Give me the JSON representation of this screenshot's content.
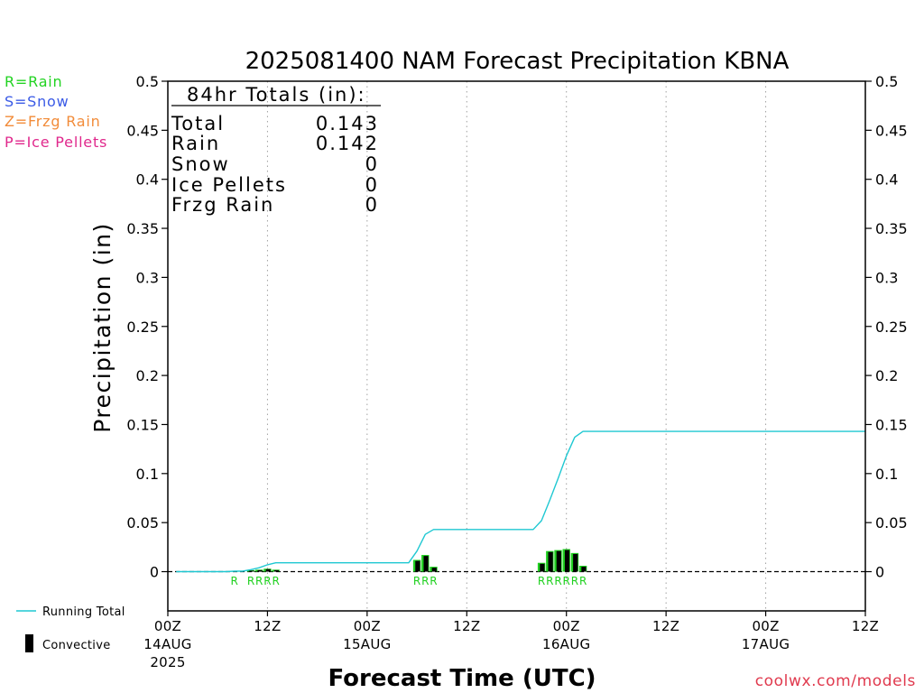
{
  "type_legend": [
    {
      "label": "R=Rain",
      "color": "#22d322"
    },
    {
      "label": "S=Snow",
      "color": "#3b5be6"
    },
    {
      "label": "Z=Frzg Rain",
      "color": "#f28c3a"
    },
    {
      "label": "P=Ice Pellets",
      "color": "#e0288c"
    }
  ],
  "totals": {
    "heading": "84hr Totals (in):",
    "rows": [
      {
        "label": "Total",
        "value": "0.143"
      },
      {
        "label": "Rain",
        "value": "0.142"
      },
      {
        "label": "Snow",
        "value": "0"
      },
      {
        "label": "Ice Pellets",
        "value": "0"
      },
      {
        "label": "Frzg Rain",
        "value": "0"
      }
    ]
  },
  "credit": {
    "text": "coolwx.com/models",
    "color": "#e03a4e"
  },
  "colors": {
    "grid": "#a0a0a0",
    "axes": "#000000"
  },
  "chart_data": {
    "type": "bar",
    "title": "2025081400 NAM Forecast Precipitation KBNA",
    "xlabel": "Forecast Time (UTC)",
    "ylabel": "Precipitation (in)",
    "xlim": [
      "2025-08-14T00:00Z",
      "2025-08-17T12:00Z"
    ],
    "ylim": [
      -0.04,
      0.5
    ],
    "grid": {
      "x": true,
      "y": false
    },
    "zero_line": true,
    "yticks": [
      "0",
      "0.05",
      "0.1",
      "0.15",
      "0.2",
      "0.25",
      "0.3",
      "0.35",
      "0.4",
      "0.45",
      "0.5"
    ],
    "xticks": [
      {
        "time": "2025-08-14T00:00Z",
        "label": [
          "00Z",
          "14AUG",
          "2025"
        ]
      },
      {
        "time": "2025-08-14T12:00Z",
        "label": [
          "12Z"
        ]
      },
      {
        "time": "2025-08-15T00:00Z",
        "label": [
          "00Z",
          "15AUG"
        ]
      },
      {
        "time": "2025-08-15T12:00Z",
        "label": [
          "12Z"
        ]
      },
      {
        "time": "2025-08-16T00:00Z",
        "label": [
          "00Z",
          "16AUG"
        ]
      },
      {
        "time": "2025-08-16T12:00Z",
        "label": [
          "12Z"
        ]
      },
      {
        "time": "2025-08-17T00:00Z",
        "label": [
          "00Z",
          "17AUG"
        ]
      },
      {
        "time": "2025-08-17T12:00Z",
        "label": [
          "12Z"
        ]
      }
    ],
    "series": [
      {
        "name": "Running Total",
        "type": "line",
        "color": "#1fc8d2",
        "x": [
          "2025-08-14T01:00Z",
          "2025-08-14T07:00Z",
          "2025-08-14T08:00Z",
          "2025-08-14T09:00Z",
          "2025-08-14T10:00Z",
          "2025-08-14T11:00Z",
          "2025-08-14T12:00Z",
          "2025-08-14T13:00Z",
          "2025-08-15T05:00Z",
          "2025-08-15T06:00Z",
          "2025-08-15T07:00Z",
          "2025-08-15T08:00Z",
          "2025-08-15T20:00Z",
          "2025-08-15T21:00Z",
          "2025-08-15T22:00Z",
          "2025-08-15T23:00Z",
          "2025-08-16T00:00Z",
          "2025-08-16T01:00Z",
          "2025-08-16T02:00Z",
          "2025-08-17T12:00Z"
        ],
        "y": [
          0,
          0,
          0.0005,
          0.0005,
          0.002,
          0.004,
          0.007,
          0.009,
          0.009,
          0.021,
          0.038,
          0.043,
          0.043,
          0.052,
          0.073,
          0.095,
          0.118,
          0.137,
          0.143,
          0.143
        ]
      },
      {
        "type": "bar",
        "color": "#1fd01f",
        "x": [
          "2025-08-14T08:00Z",
          "2025-08-14T10:00Z",
          "2025-08-14T11:00Z",
          "2025-08-14T12:00Z",
          "2025-08-14T13:00Z",
          "2025-08-15T06:00Z",
          "2025-08-15T07:00Z",
          "2025-08-15T08:00Z",
          "2025-08-15T21:00Z",
          "2025-08-15T22:00Z",
          "2025-08-15T23:00Z",
          "2025-08-16T00:00Z",
          "2025-08-16T01:00Z",
          "2025-08-16T02:00Z"
        ],
        "y": [
          0.0005,
          0.0015,
          0.002,
          0.003,
          0.002,
          0.012,
          0.017,
          0.005,
          0.009,
          0.021,
          0.022,
          0.023,
          0.019,
          0.006
        ],
        "type_letters": [
          "R",
          "R",
          "R",
          "R",
          "R",
          "R",
          "R",
          "R",
          "R",
          "R",
          "R",
          "R",
          "R",
          "R"
        ]
      },
      {
        "name": "Convective",
        "type": "bar",
        "color": "#000000",
        "x": [
          "2025-08-14T08:00Z",
          "2025-08-14T10:00Z",
          "2025-08-14T11:00Z",
          "2025-08-14T12:00Z",
          "2025-08-14T13:00Z",
          "2025-08-15T06:00Z",
          "2025-08-15T07:00Z",
          "2025-08-15T08:00Z",
          "2025-08-15T21:00Z",
          "2025-08-15T22:00Z",
          "2025-08-15T23:00Z",
          "2025-08-16T00:00Z",
          "2025-08-16T01:00Z",
          "2025-08-16T02:00Z"
        ],
        "y": [
          0.0005,
          0.001,
          0.0015,
          0.0025,
          0.0015,
          0.011,
          0.016,
          0.004,
          0.008,
          0.02,
          0.021,
          0.022,
          0.018,
          0.005
        ]
      }
    ]
  }
}
